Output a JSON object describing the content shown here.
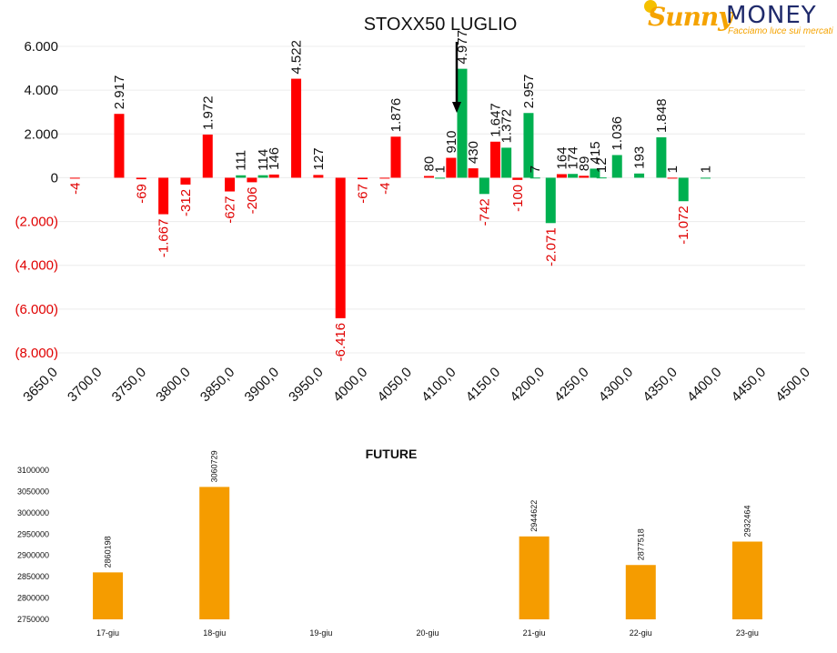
{
  "logo": {
    "brand_left": "Sunny",
    "brand_right": "MONEY",
    "tagline": "Facciamo luce sui mercati"
  },
  "colors": {
    "negative": "#ff0000",
    "positive": "#00b050",
    "future": "#f59c00",
    "neg_label": "#e00000"
  },
  "chart_data": [
    {
      "type": "bar",
      "title": "STOXX50 LUGLIO",
      "x_ticks": [
        "3650,0",
        "3700,0",
        "3750,0",
        "3800,0",
        "3850,0",
        "3900,0",
        "3950,0",
        "4000,0",
        "4050,0",
        "4100,0",
        "4150,0",
        "4200,0",
        "4250,0",
        "4300,0",
        "4350,0",
        "4400,0",
        "4450,0",
        "4500,0"
      ],
      "y_ticks": [
        "6.000",
        "4.000",
        "2.000",
        "0",
        "(2.000)",
        "(4.000)",
        "(6.000)",
        "(8.000)"
      ],
      "xlim": [
        3650,
        4500
      ],
      "ylim": [
        -8000,
        6000
      ],
      "marker": {
        "label_x": 4100,
        "note": "arrow"
      },
      "series": [
        {
          "color_key": "red",
          "points": [
            {
              "x": 3675,
              "y": -4,
              "label": "-4"
            },
            {
              "x": 3725,
              "y": 2917,
              "label": "2.917"
            },
            {
              "x": 3750,
              "y": -69,
              "label": "-69"
            },
            {
              "x": 3775,
              "y": -1667,
              "label": "-1.667"
            },
            {
              "x": 3800,
              "y": -312,
              "label": "-312"
            },
            {
              "x": 3825,
              "y": 1972,
              "label": "1.972"
            },
            {
              "x": 3850,
              "y": -627,
              "label": "-627"
            },
            {
              "x": 3875,
              "y": -206,
              "label": "-206"
            },
            {
              "x": 3900,
              "y": 146,
              "label": "146"
            },
            {
              "x": 3925,
              "y": 4522,
              "label": "4.522"
            },
            {
              "x": 3950,
              "y": 127,
              "label": "127"
            },
            {
              "x": 3975,
              "y": -6416,
              "label": "-6.416"
            },
            {
              "x": 4000,
              "y": -67,
              "label": "-67"
            },
            {
              "x": 4025,
              "y": -4,
              "label": "-4"
            },
            {
              "x": 4037.5,
              "y": 1876,
              "label": "1.876"
            },
            {
              "x": 4075,
              "y": 80,
              "label": "80"
            },
            {
              "x": 4100,
              "y": 910,
              "label": "910"
            },
            {
              "x": 4125,
              "y": 430,
              "label": "430"
            },
            {
              "x": 4150,
              "y": 1647,
              "label": "1.647"
            },
            {
              "x": 4175,
              "y": -100,
              "label": "-100"
            },
            {
              "x": 4225,
              "y": 164,
              "label": "164"
            },
            {
              "x": 4250,
              "y": 89,
              "label": "89"
            },
            {
              "x": 4350,
              "y": 1,
              "label": "1"
            }
          ]
        },
        {
          "color_key": "green",
          "points": [
            {
              "x": 3862.5,
              "y": 111,
              "label": "111"
            },
            {
              "x": 3887.5,
              "y": 114,
              "label": "114"
            },
            {
              "x": 4087.5,
              "y": 1,
              "label": "1"
            },
            {
              "x": 4112.5,
              "y": 4977,
              "label": "4.977"
            },
            {
              "x": 4137.5,
              "y": -742,
              "label": "-742"
            },
            {
              "x": 4162.5,
              "y": 1372,
              "label": "1.372"
            },
            {
              "x": 4187.5,
              "y": 2957,
              "label": "2.957"
            },
            {
              "x": 4195,
              "y": 7,
              "label": "7"
            },
            {
              "x": 4212.5,
              "y": -2071,
              "label": "-2.071"
            },
            {
              "x": 4237.5,
              "y": 174,
              "label": "174"
            },
            {
              "x": 4262.5,
              "y": 415,
              "label": "415"
            },
            {
              "x": 4270,
              "y": 12,
              "label": "12"
            },
            {
              "x": 4287.5,
              "y": 1036,
              "label": "1.036"
            },
            {
              "x": 4312.5,
              "y": 193,
              "label": "193"
            },
            {
              "x": 4337.5,
              "y": 1848,
              "label": "1.848"
            },
            {
              "x": 4362.5,
              "y": -1072,
              "label": "-1.072"
            },
            {
              "x": 4387.5,
              "y": 1,
              "label": "1"
            }
          ]
        }
      ]
    },
    {
      "type": "bar",
      "title": "FUTURE",
      "categories": [
        "17-giu",
        "18-giu",
        "19-giu",
        "20-giu",
        "21-giu",
        "22-giu",
        "23-giu"
      ],
      "values": [
        2860198,
        3060729,
        null,
        null,
        2944622,
        2877518,
        2932464
      ],
      "labels": [
        "2860198",
        "3060729",
        "",
        "",
        "2944622",
        "2877518",
        "2932464"
      ],
      "y_ticks": [
        "3100000",
        "3050000",
        "3000000",
        "2950000",
        "2900000",
        "2850000",
        "2800000",
        "2750000"
      ],
      "ylim": [
        2750000,
        3100000
      ]
    }
  ]
}
